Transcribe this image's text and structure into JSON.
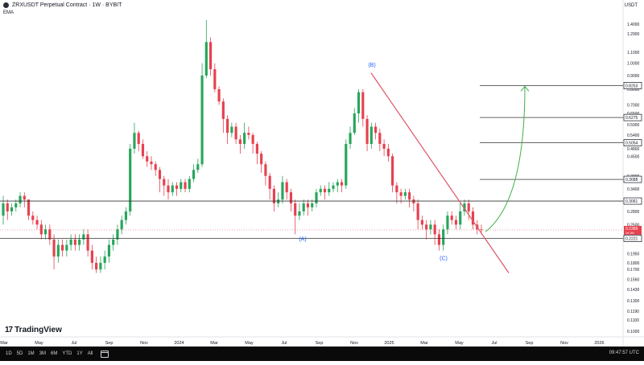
{
  "header": {
    "symbol_title": "ZRXUSDT Perpetual Contract · 1W · BYBIT",
    "indicator": "EMA",
    "currency": "USDT"
  },
  "logo_text": "TradingView",
  "timeframes": [
    "1D",
    "5D",
    "1M",
    "3M",
    "6M",
    "YTD",
    "1Y",
    "All"
  ],
  "clock": "09:47:57 UTC",
  "colors": {
    "up": "#26a65b",
    "down": "#e6414f",
    "trendline": "#e05565",
    "arrow": "#3fae49",
    "level_line": "#333333"
  },
  "chart_data": {
    "type": "candlestick",
    "y_axis_ticks": [
      "1.4000",
      "1.2900",
      "1.1000",
      "1.0000",
      "0.9000",
      "0.8000",
      "0.7000",
      "0.6500",
      "0.5900",
      "0.5400",
      "0.4800",
      "0.4500",
      "0.3800",
      "0.3400",
      "0.3100",
      "0.2800",
      "0.2500",
      "0.2200",
      "0.1950",
      "0.1800",
      "0.1700",
      "0.1560",
      "0.1430",
      "0.1300",
      "0.1190",
      "0.1100",
      "0.1000"
    ],
    "x_axis_ticks": [
      "Mar",
      "May",
      "Jul",
      "Sep",
      "Nov",
      "2024",
      "Mar",
      "May",
      "Jul",
      "Sep",
      "Nov",
      "2025",
      "Mar",
      "May",
      "Jul",
      "Sep",
      "Nov",
      "2026"
    ],
    "price_labels": [
      {
        "text": "0.8253",
        "value": 0.8253
      },
      {
        "text": "0.6275",
        "value": 0.6275
      },
      {
        "text": "0.5054",
        "value": 0.5054
      },
      {
        "text": "0.3688",
        "value": 0.3688
      },
      {
        "text": "0.3061",
        "value": 0.3061
      },
      {
        "text": "0.2221",
        "value": 0.2221
      }
    ],
    "current_price": {
      "text": "0.2389",
      "sub": "2d 18h",
      "value": 0.2389
    },
    "wave_labels": [
      {
        "text": "(A)",
        "value": 0.23
      },
      {
        "text": "(B)",
        "value": 0.92
      },
      {
        "text": "(C)",
        "value": 0.2
      }
    ],
    "candles": [
      [
        0.27,
        0.3,
        0.32,
        0.25
      ],
      [
        0.3,
        0.28,
        0.31,
        0.26
      ],
      [
        0.28,
        0.29,
        0.3,
        0.27
      ],
      [
        0.29,
        0.3,
        0.31,
        0.28
      ],
      [
        0.3,
        0.32,
        0.33,
        0.29
      ],
      [
        0.32,
        0.31,
        0.33,
        0.29
      ],
      [
        0.31,
        0.27,
        0.31,
        0.26
      ],
      [
        0.27,
        0.26,
        0.28,
        0.25
      ],
      [
        0.26,
        0.25,
        0.27,
        0.24
      ],
      [
        0.25,
        0.23,
        0.26,
        0.22
      ],
      [
        0.23,
        0.24,
        0.25,
        0.22
      ],
      [
        0.24,
        0.22,
        0.25,
        0.21
      ],
      [
        0.22,
        0.19,
        0.23,
        0.17
      ],
      [
        0.19,
        0.21,
        0.22,
        0.18
      ],
      [
        0.21,
        0.2,
        0.22,
        0.19
      ],
      [
        0.2,
        0.21,
        0.22,
        0.19
      ],
      [
        0.21,
        0.22,
        0.23,
        0.2
      ],
      [
        0.22,
        0.21,
        0.23,
        0.2
      ],
      [
        0.21,
        0.22,
        0.23,
        0.2
      ],
      [
        0.22,
        0.23,
        0.24,
        0.21
      ],
      [
        0.23,
        0.2,
        0.24,
        0.19
      ],
      [
        0.2,
        0.18,
        0.21,
        0.17
      ],
      [
        0.18,
        0.17,
        0.19,
        0.165
      ],
      [
        0.17,
        0.18,
        0.19,
        0.165
      ],
      [
        0.18,
        0.19,
        0.2,
        0.17
      ],
      [
        0.19,
        0.21,
        0.22,
        0.18
      ],
      [
        0.21,
        0.22,
        0.23,
        0.2
      ],
      [
        0.22,
        0.24,
        0.25,
        0.21
      ],
      [
        0.24,
        0.26,
        0.27,
        0.23
      ],
      [
        0.26,
        0.28,
        0.29,
        0.25
      ],
      [
        0.28,
        0.48,
        0.5,
        0.27
      ],
      [
        0.48,
        0.55,
        0.6,
        0.46
      ],
      [
        0.55,
        0.5,
        0.56,
        0.47
      ],
      [
        0.5,
        0.45,
        0.52,
        0.44
      ],
      [
        0.45,
        0.43,
        0.47,
        0.41
      ],
      [
        0.43,
        0.42,
        0.45,
        0.4
      ],
      [
        0.42,
        0.4,
        0.43,
        0.38
      ],
      [
        0.4,
        0.37,
        0.41,
        0.33
      ],
      [
        0.37,
        0.35,
        0.38,
        0.32
      ],
      [
        0.35,
        0.33,
        0.37,
        0.31
      ],
      [
        0.33,
        0.35,
        0.36,
        0.32
      ],
      [
        0.35,
        0.34,
        0.36,
        0.32
      ],
      [
        0.34,
        0.36,
        0.37,
        0.33
      ],
      [
        0.36,
        0.34,
        0.37,
        0.33
      ],
      [
        0.34,
        0.37,
        0.38,
        0.33
      ],
      [
        0.37,
        0.4,
        0.42,
        0.36
      ],
      [
        0.4,
        0.42,
        0.44,
        0.39
      ],
      [
        0.42,
        0.9,
        1.0,
        0.41
      ],
      [
        0.9,
        1.2,
        1.45,
        0.88
      ],
      [
        1.2,
        0.95,
        1.25,
        0.9
      ],
      [
        0.95,
        0.8,
        1.0,
        0.78
      ],
      [
        0.8,
        0.72,
        0.82,
        0.7
      ],
      [
        0.72,
        0.62,
        0.74,
        0.55
      ],
      [
        0.62,
        0.55,
        0.64,
        0.5
      ],
      [
        0.55,
        0.58,
        0.6,
        0.53
      ],
      [
        0.58,
        0.52,
        0.6,
        0.5
      ],
      [
        0.52,
        0.5,
        0.54,
        0.46
      ],
      [
        0.5,
        0.55,
        0.6,
        0.48
      ],
      [
        0.55,
        0.54,
        0.58,
        0.52
      ],
      [
        0.54,
        0.5,
        0.55,
        0.46
      ],
      [
        0.5,
        0.46,
        0.51,
        0.42
      ],
      [
        0.46,
        0.42,
        0.47,
        0.39
      ],
      [
        0.42,
        0.38,
        0.43,
        0.35
      ],
      [
        0.38,
        0.34,
        0.39,
        0.31
      ],
      [
        0.34,
        0.3,
        0.35,
        0.28
      ],
      [
        0.3,
        0.31,
        0.33,
        0.29
      ],
      [
        0.31,
        0.36,
        0.38,
        0.3
      ],
      [
        0.36,
        0.33,
        0.37,
        0.31
      ],
      [
        0.33,
        0.3,
        0.34,
        0.28
      ],
      [
        0.3,
        0.27,
        0.31,
        0.23
      ],
      [
        0.27,
        0.28,
        0.3,
        0.26
      ],
      [
        0.28,
        0.3,
        0.31,
        0.27
      ],
      [
        0.3,
        0.29,
        0.31,
        0.27
      ],
      [
        0.29,
        0.3,
        0.31,
        0.28
      ],
      [
        0.3,
        0.33,
        0.34,
        0.29
      ],
      [
        0.33,
        0.34,
        0.35,
        0.32
      ],
      [
        0.34,
        0.33,
        0.35,
        0.31
      ],
      [
        0.33,
        0.34,
        0.36,
        0.32
      ],
      [
        0.34,
        0.35,
        0.36,
        0.33
      ],
      [
        0.35,
        0.36,
        0.37,
        0.33
      ],
      [
        0.36,
        0.35,
        0.37,
        0.33
      ],
      [
        0.35,
        0.5,
        0.52,
        0.34
      ],
      [
        0.5,
        0.55,
        0.58,
        0.48
      ],
      [
        0.55,
        0.65,
        0.68,
        0.54
      ],
      [
        0.65,
        0.78,
        0.8,
        0.6
      ],
      [
        0.78,
        0.62,
        0.8,
        0.58
      ],
      [
        0.62,
        0.5,
        0.64,
        0.47
      ],
      [
        0.5,
        0.58,
        0.6,
        0.48
      ],
      [
        0.58,
        0.55,
        0.6,
        0.52
      ],
      [
        0.55,
        0.5,
        0.57,
        0.47
      ],
      [
        0.5,
        0.48,
        0.52,
        0.45
      ],
      [
        0.48,
        0.45,
        0.5,
        0.43
      ],
      [
        0.45,
        0.35,
        0.46,
        0.33
      ],
      [
        0.35,
        0.33,
        0.36,
        0.3
      ],
      [
        0.33,
        0.32,
        0.34,
        0.3
      ],
      [
        0.32,
        0.33,
        0.34,
        0.31
      ],
      [
        0.33,
        0.31,
        0.34,
        0.29
      ],
      [
        0.31,
        0.3,
        0.32,
        0.28
      ],
      [
        0.3,
        0.26,
        0.31,
        0.24
      ],
      [
        0.26,
        0.25,
        0.27,
        0.24
      ],
      [
        0.25,
        0.24,
        0.26,
        0.22
      ],
      [
        0.24,
        0.25,
        0.26,
        0.23
      ],
      [
        0.25,
        0.23,
        0.26,
        0.21
      ],
      [
        0.23,
        0.21,
        0.24,
        0.2
      ],
      [
        0.21,
        0.24,
        0.25,
        0.2
      ],
      [
        0.24,
        0.27,
        0.28,
        0.23
      ],
      [
        0.27,
        0.26,
        0.28,
        0.25
      ],
      [
        0.26,
        0.25,
        0.27,
        0.24
      ],
      [
        0.25,
        0.28,
        0.3,
        0.24
      ],
      [
        0.28,
        0.3,
        0.31,
        0.27
      ],
      [
        0.3,
        0.28,
        0.31,
        0.26
      ],
      [
        0.28,
        0.25,
        0.29,
        0.24
      ],
      [
        0.25,
        0.24,
        0.26,
        0.23
      ],
      [
        0.24,
        0.2389,
        0.25,
        0.23
      ]
    ]
  }
}
